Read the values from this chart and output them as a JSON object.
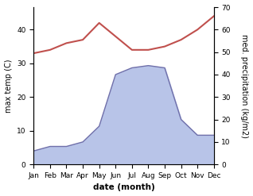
{
  "months": [
    "Jan",
    "Feb",
    "Mar",
    "Apr",
    "May",
    "Jun",
    "Jul",
    "Aug",
    "Sep",
    "Oct",
    "Nov",
    "Dec"
  ],
  "temperature": [
    33,
    34,
    36,
    37,
    42,
    38,
    34,
    34,
    35,
    37,
    40,
    44
  ],
  "precipitation": [
    6,
    8,
    8,
    10,
    17,
    40,
    43,
    44,
    43,
    20,
    13,
    13
  ],
  "temp_color": "#c0504d",
  "precip_line_color": "#7070aa",
  "precip_fill_color": "#b8c4e8",
  "temp_ylim": [
    0,
    46.67
  ],
  "precip_ylim": [
    0,
    70
  ],
  "xlabel": "date (month)",
  "ylabel_left": "max temp (C)",
  "ylabel_right": "med. precipitation (kg/m2)",
  "label_fontsize": 7,
  "tick_fontsize": 6.5
}
